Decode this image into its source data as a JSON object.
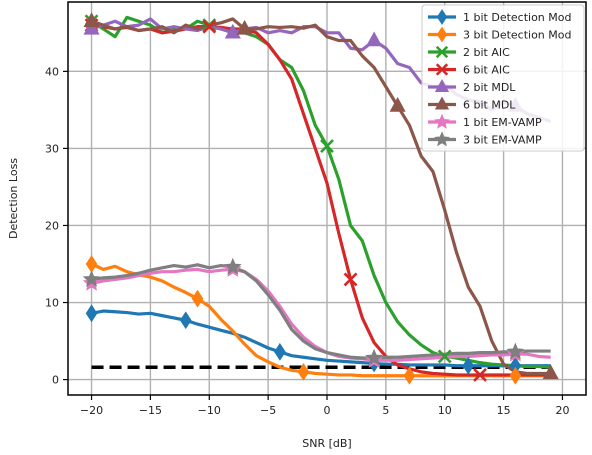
{
  "chart_data": {
    "type": "line",
    "xlabel": "SNR [dB]",
    "ylabel": "Detection Loss",
    "xlim": [
      -22,
      22
    ],
    "ylim": [
      -2,
      49
    ],
    "xticks": [
      -20,
      -15,
      -10,
      -5,
      0,
      5,
      10,
      15,
      20
    ],
    "yticks": [
      0,
      10,
      20,
      30,
      40
    ],
    "grid": true,
    "legend_position": "top-right",
    "reference_line": {
      "y": 1.6,
      "style": "dashed",
      "color": "#000000"
    },
    "series": [
      {
        "name": "1 bit Detection Mod",
        "color": "#1f77b4",
        "marker": "diamond",
        "x": [
          -20,
          -19,
          -18,
          -17,
          -16,
          -15,
          -14,
          -13,
          -12,
          -11,
          -10,
          -9,
          -8,
          -7,
          -6,
          -5,
          -4,
          -3,
          -2,
          -1,
          0,
          1,
          2,
          3,
          4,
          5,
          6,
          7,
          8,
          9,
          10,
          11,
          12,
          13,
          14,
          15,
          16,
          17,
          18,
          19
        ],
        "y": [
          8.6,
          8.9,
          8.8,
          8.7,
          8.5,
          8.6,
          8.3,
          8.0,
          7.7,
          7.2,
          6.8,
          6.4,
          6.0,
          5.5,
          4.8,
          4.1,
          3.6,
          3.1,
          2.9,
          2.7,
          2.5,
          2.4,
          2.3,
          2.2,
          2.1,
          2.0,
          2.0,
          1.9,
          1.9,
          1.9,
          1.9,
          1.8,
          1.8,
          1.8,
          1.8,
          1.8,
          1.8,
          1.8,
          1.8,
          1.8
        ],
        "marker_x": [
          -20,
          -12,
          -4,
          4,
          12,
          16
        ]
      },
      {
        "name": "3 bit Detection Mod",
        "color": "#ff7f0e",
        "marker": "diamond",
        "x": [
          -20,
          -19,
          -18,
          -17,
          -16,
          -15,
          -14,
          -13,
          -12,
          -11,
          -10,
          -9,
          -8,
          -7,
          -6,
          -5,
          -4,
          -3,
          -2,
          -1,
          0,
          1,
          2,
          3,
          4,
          5,
          6,
          7,
          8,
          9,
          10,
          11,
          12,
          13,
          14,
          15,
          16,
          17,
          18,
          19
        ],
        "y": [
          15.0,
          14.3,
          14.7,
          14.0,
          13.6,
          13.3,
          12.8,
          12.0,
          11.3,
          10.5,
          9.5,
          7.8,
          6.3,
          4.6,
          3.1,
          2.3,
          1.6,
          1.2,
          1.0,
          0.8,
          0.7,
          0.6,
          0.6,
          0.5,
          0.5,
          0.5,
          0.5,
          0.5,
          0.5,
          0.5,
          0.5,
          0.5,
          0.5,
          0.5,
          0.5,
          0.5,
          0.5,
          0.5,
          0.5,
          0.5
        ],
        "marker_x": [
          -20,
          -11,
          -2,
          7,
          16
        ]
      },
      {
        "name": "2 bit AIC",
        "color": "#2ca02c",
        "marker": "x",
        "x": [
          -20,
          -19,
          -18,
          -17,
          -16,
          -15,
          -14,
          -13,
          -12,
          -11,
          -10,
          -9,
          -8,
          -7,
          -6,
          -5,
          -4,
          -3,
          -2,
          -1,
          0,
          1,
          2,
          3,
          4,
          5,
          6,
          7,
          8,
          9,
          10,
          11,
          12,
          13,
          14,
          15,
          16,
          17,
          18,
          19
        ],
        "y": [
          46.5,
          45.5,
          44.5,
          47.0,
          46.5,
          46.0,
          45.0,
          45.5,
          45.5,
          46.5,
          46.0,
          45.5,
          45.5,
          45.0,
          44.5,
          43.5,
          41.5,
          40.5,
          37.5,
          33.0,
          30.3,
          26.0,
          20.0,
          18.0,
          13.5,
          10.0,
          7.5,
          5.8,
          4.5,
          3.5,
          3.0,
          2.8,
          2.5,
          2.2,
          2.0,
          1.9,
          1.8,
          1.7,
          1.7,
          1.6
        ],
        "marker_x": [
          -20,
          -10,
          0,
          10
        ]
      },
      {
        "name": "6 bit AIC",
        "color": "#d62728",
        "marker": "x",
        "x": [
          -20,
          -19,
          -18,
          -17,
          -16,
          -15,
          -14,
          -13,
          -12,
          -11,
          -10,
          -9,
          -8,
          -7,
          -6,
          -5,
          -4,
          -3,
          -2,
          -1,
          0,
          1,
          2,
          3,
          4,
          5,
          6,
          7,
          8,
          9,
          10,
          11,
          12,
          13,
          14,
          15,
          16,
          17,
          18,
          19
        ],
        "y": [
          46.0,
          45.8,
          45.5,
          45.7,
          45.3,
          45.5,
          45.0,
          45.2,
          45.5,
          45.8,
          45.8,
          45.7,
          45.5,
          45.5,
          45.0,
          43.5,
          41.5,
          39.0,
          34.5,
          30.0,
          25.5,
          19.0,
          13.0,
          8.0,
          4.8,
          3.0,
          1.9,
          1.4,
          1.0,
          0.8,
          0.7,
          0.6,
          0.6,
          0.6,
          0.6,
          0.6,
          0.6,
          0.6,
          0.6,
          0.6
        ],
        "marker_x": [
          -20,
          -10,
          2,
          13
        ]
      },
      {
        "name": "2 bit MDL",
        "color": "#9467bd",
        "marker": "triangle-up",
        "x": [
          -20,
          -19,
          -18,
          -17,
          -16,
          -15,
          -14,
          -13,
          -12,
          -11,
          -10,
          -9,
          -8,
          -7,
          -6,
          -5,
          -4,
          -3,
          -2,
          -1,
          0,
          1,
          2,
          3,
          4,
          5,
          6,
          7,
          8,
          9,
          10,
          11,
          12,
          13,
          14,
          15,
          16,
          17,
          18,
          19
        ],
        "y": [
          45.5,
          46.0,
          46.5,
          45.8,
          46.0,
          46.8,
          45.5,
          45.8,
          45.5,
          45.3,
          45.8,
          45.5,
          45.0,
          45.5,
          45.7,
          45.0,
          45.3,
          45.0,
          45.8,
          45.8,
          45.0,
          45.0,
          43.0,
          42.8,
          44.0,
          43.0,
          41.0,
          40.5,
          38.5,
          38.0,
          38.3,
          37.0,
          36.3,
          36.0,
          35.0,
          36.0,
          35.5,
          34.5,
          34.0,
          33.5
        ],
        "marker_x": [
          -20,
          -8,
          4,
          16
        ]
      },
      {
        "name": "6 bit MDL",
        "color": "#8c564b",
        "marker": "triangle-up",
        "x": [
          -20,
          -19,
          -18,
          -17,
          -16,
          -15,
          -14,
          -13,
          -12,
          -11,
          -10,
          -9,
          -8,
          -7,
          -6,
          -5,
          -4,
          -3,
          -2,
          -1,
          0,
          1,
          2,
          3,
          4,
          5,
          6,
          7,
          8,
          9,
          10,
          11,
          12,
          13,
          14,
          15,
          16,
          17,
          18,
          19
        ],
        "y": [
          46.5,
          46.0,
          45.5,
          45.8,
          45.3,
          45.5,
          45.8,
          45.0,
          46.0,
          45.5,
          46.0,
          46.3,
          46.8,
          45.5,
          45.5,
          45.8,
          45.7,
          45.8,
          45.6,
          46.0,
          44.5,
          44.0,
          44.0,
          42.0,
          40.5,
          38.0,
          35.5,
          33.0,
          29.0,
          27.0,
          22.0,
          16.5,
          12.0,
          9.5,
          5.0,
          2.0,
          1.0,
          0.8,
          0.8,
          0.8
        ],
        "marker_x": [
          -20,
          -7,
          6,
          19
        ]
      },
      {
        "name": "1 bit EM-VAMP",
        "color": "#e377c2",
        "marker": "star",
        "x": [
          -20,
          -19,
          -18,
          -17,
          -16,
          -15,
          -14,
          -13,
          -12,
          -11,
          -10,
          -9,
          -8,
          -7,
          -6,
          -5,
          -4,
          -3,
          -2,
          -1,
          0,
          1,
          2,
          3,
          4,
          5,
          6,
          7,
          8,
          9,
          10,
          11,
          12,
          13,
          14,
          15,
          16,
          17,
          18,
          19
        ],
        "y": [
          12.5,
          12.8,
          13.0,
          13.2,
          13.5,
          13.8,
          14.0,
          14.0,
          14.2,
          14.3,
          14.0,
          14.2,
          14.3,
          14.0,
          13.0,
          11.5,
          9.5,
          7.2,
          5.5,
          4.3,
          3.5,
          3.0,
          2.8,
          2.7,
          2.5,
          2.5,
          2.5,
          2.6,
          2.7,
          2.8,
          2.9,
          3.0,
          3.0,
          3.1,
          3.2,
          3.2,
          3.3,
          3.3,
          3.0,
          2.9
        ],
        "marker_x": [
          -20,
          -8,
          4,
          16
        ]
      },
      {
        "name": "3 bit EM-VAMP",
        "color": "#7f7f7f",
        "marker": "star",
        "x": [
          -20,
          -19,
          -18,
          -17,
          -16,
          -15,
          -14,
          -13,
          -12,
          -11,
          -10,
          -9,
          -8,
          -7,
          -6,
          -5,
          -4,
          -3,
          -2,
          -1,
          0,
          1,
          2,
          3,
          4,
          5,
          6,
          7,
          8,
          9,
          10,
          11,
          12,
          13,
          14,
          15,
          16,
          17,
          18,
          19
        ],
        "y": [
          13.0,
          13.2,
          13.3,
          13.5,
          13.8,
          14.2,
          14.5,
          14.8,
          14.6,
          14.9,
          14.5,
          14.8,
          14.6,
          14.0,
          12.8,
          11.0,
          9.0,
          6.5,
          5.0,
          4.0,
          3.5,
          3.2,
          2.9,
          2.8,
          2.8,
          2.9,
          2.9,
          3.0,
          3.1,
          3.2,
          3.3,
          3.4,
          3.4,
          3.5,
          3.5,
          3.6,
          3.6,
          3.7,
          3.7,
          3.7
        ],
        "marker_x": [
          -20,
          -8,
          4,
          16
        ]
      }
    ]
  }
}
